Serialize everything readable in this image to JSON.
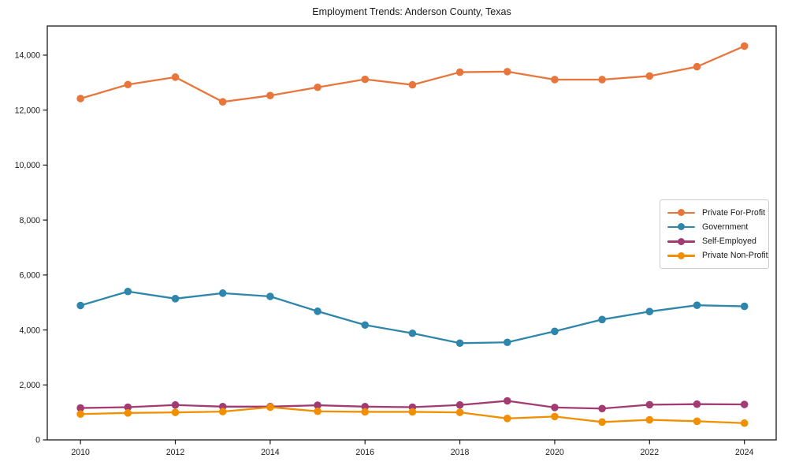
{
  "chart_data": {
    "type": "line",
    "title": "Employment Trends: Anderson County, Texas",
    "x": [
      2010,
      2011,
      2012,
      2013,
      2014,
      2015,
      2016,
      2017,
      2018,
      2019,
      2020,
      2021,
      2022,
      2023,
      2024
    ],
    "series": [
      {
        "name": "Private For-Profit",
        "color": "#E8763C",
        "values": [
          12420,
          12930,
          13200,
          12300,
          12530,
          12830,
          13120,
          12920,
          13380,
          13400,
          13110,
          13110,
          13240,
          13580,
          14330
        ]
      },
      {
        "name": "Government",
        "color": "#2E86AB",
        "values": [
          4890,
          5400,
          5140,
          5340,
          5220,
          4680,
          4180,
          3880,
          3520,
          3550,
          3950,
          4380,
          4670,
          4900,
          4860
        ]
      },
      {
        "name": "Self-Employed",
        "color": "#A23B72",
        "values": [
          1160,
          1190,
          1270,
          1210,
          1210,
          1260,
          1210,
          1190,
          1270,
          1420,
          1180,
          1140,
          1280,
          1300,
          1290
        ]
      },
      {
        "name": "Private Non-Profit",
        "color": "#F18F01",
        "values": [
          940,
          980,
          1000,
          1030,
          1190,
          1040,
          1020,
          1020,
          1000,
          780,
          850,
          650,
          730,
          680,
          610
        ]
      }
    ],
    "xlabel": "",
    "ylabel": "",
    "xlim": [
      2009.3,
      2024.67
    ],
    "ylim": [
      0,
      15060
    ],
    "xticks": {
      "values": [
        2010,
        2012,
        2014,
        2016,
        2018,
        2020,
        2022,
        2024
      ],
      "labels": [
        "2010",
        "2012",
        "2014",
        "2016",
        "2018",
        "2020",
        "2022",
        "2024"
      ]
    },
    "yticks": {
      "values": [
        0,
        2000,
        4000,
        6000,
        8000,
        10000,
        12000,
        14000
      ],
      "labels": [
        "0",
        "2,000",
        "4,000",
        "6,000",
        "8,000",
        "10,000",
        "12,000",
        "14,000"
      ]
    },
    "grid": false,
    "marker": "circle",
    "legend_position": "right-middle",
    "axis_color": "#1a1a1a"
  }
}
